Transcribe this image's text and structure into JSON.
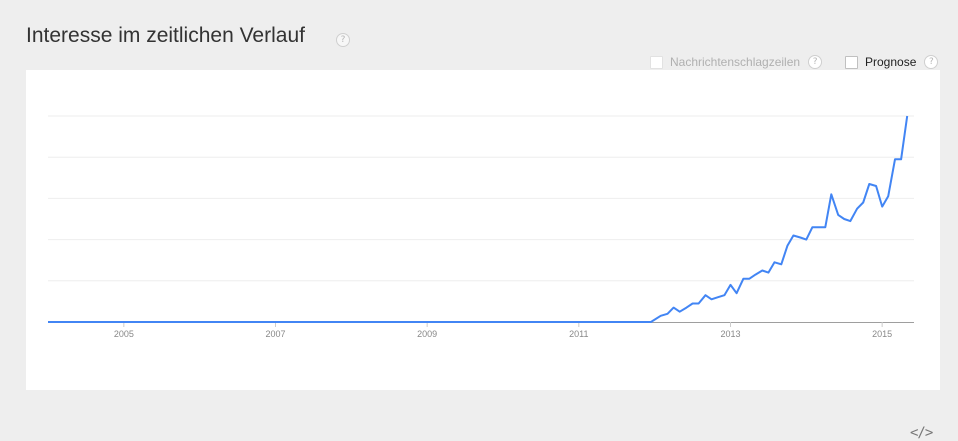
{
  "header": {
    "title": "Interesse im zeitlichen Verlauf",
    "help": "?"
  },
  "options": {
    "news": {
      "label": "Nachrichtenschlagzeilen",
      "checked": false,
      "enabled": false,
      "help": "?"
    },
    "forecast": {
      "label": "Prognose",
      "checked": false,
      "enabled": true,
      "help": "?"
    }
  },
  "embed_icon": "embed-code-icon",
  "colors": {
    "line": "#4285f4",
    "grid": "#eeeeee",
    "axis": "#9e9e9e"
  },
  "chart_data": {
    "type": "line",
    "title": "",
    "xlabel": "",
    "ylabel": "",
    "xlim": [
      2004.0,
      2015.42
    ],
    "ylim": [
      0,
      100
    ],
    "grid": true,
    "x_ticks": [
      {
        "value": 2005.0,
        "label": "2005"
      },
      {
        "value": 2007.0,
        "label": "2007"
      },
      {
        "value": 2009.0,
        "label": "2009"
      },
      {
        "value": 2011.0,
        "label": "2011"
      },
      {
        "value": 2013.0,
        "label": "2013"
      },
      {
        "value": 2015.0,
        "label": "2015"
      }
    ],
    "y_gridlines": [
      20,
      40,
      60,
      80,
      100
    ],
    "series": [
      {
        "x": [
          2004.0,
          2011.95,
          2012.08,
          2012.17,
          2012.25,
          2012.33,
          2012.42,
          2012.5,
          2012.58,
          2012.67,
          2012.75,
          2012.83,
          2012.92,
          2013.0,
          2013.08,
          2013.17,
          2013.25,
          2013.33,
          2013.42,
          2013.5,
          2013.58,
          2013.67,
          2013.75,
          2013.83,
          2013.92,
          2014.0,
          2014.08,
          2014.17,
          2014.25,
          2014.33,
          2014.42,
          2014.5,
          2014.58,
          2014.67,
          2014.75,
          2014.83,
          2014.92,
          2015.0,
          2015.08,
          2015.17,
          2015.25,
          2015.33
        ],
        "y": [
          0,
          0,
          3,
          4,
          7,
          5,
          7,
          9,
          9,
          13,
          11,
          12,
          13,
          18,
          14,
          21,
          21,
          23,
          25,
          24,
          29,
          28,
          37,
          42,
          41,
          40,
          46,
          46,
          46,
          62,
          52,
          50,
          49,
          55,
          58,
          67,
          66,
          56,
          61,
          79,
          79,
          100
        ]
      }
    ]
  }
}
